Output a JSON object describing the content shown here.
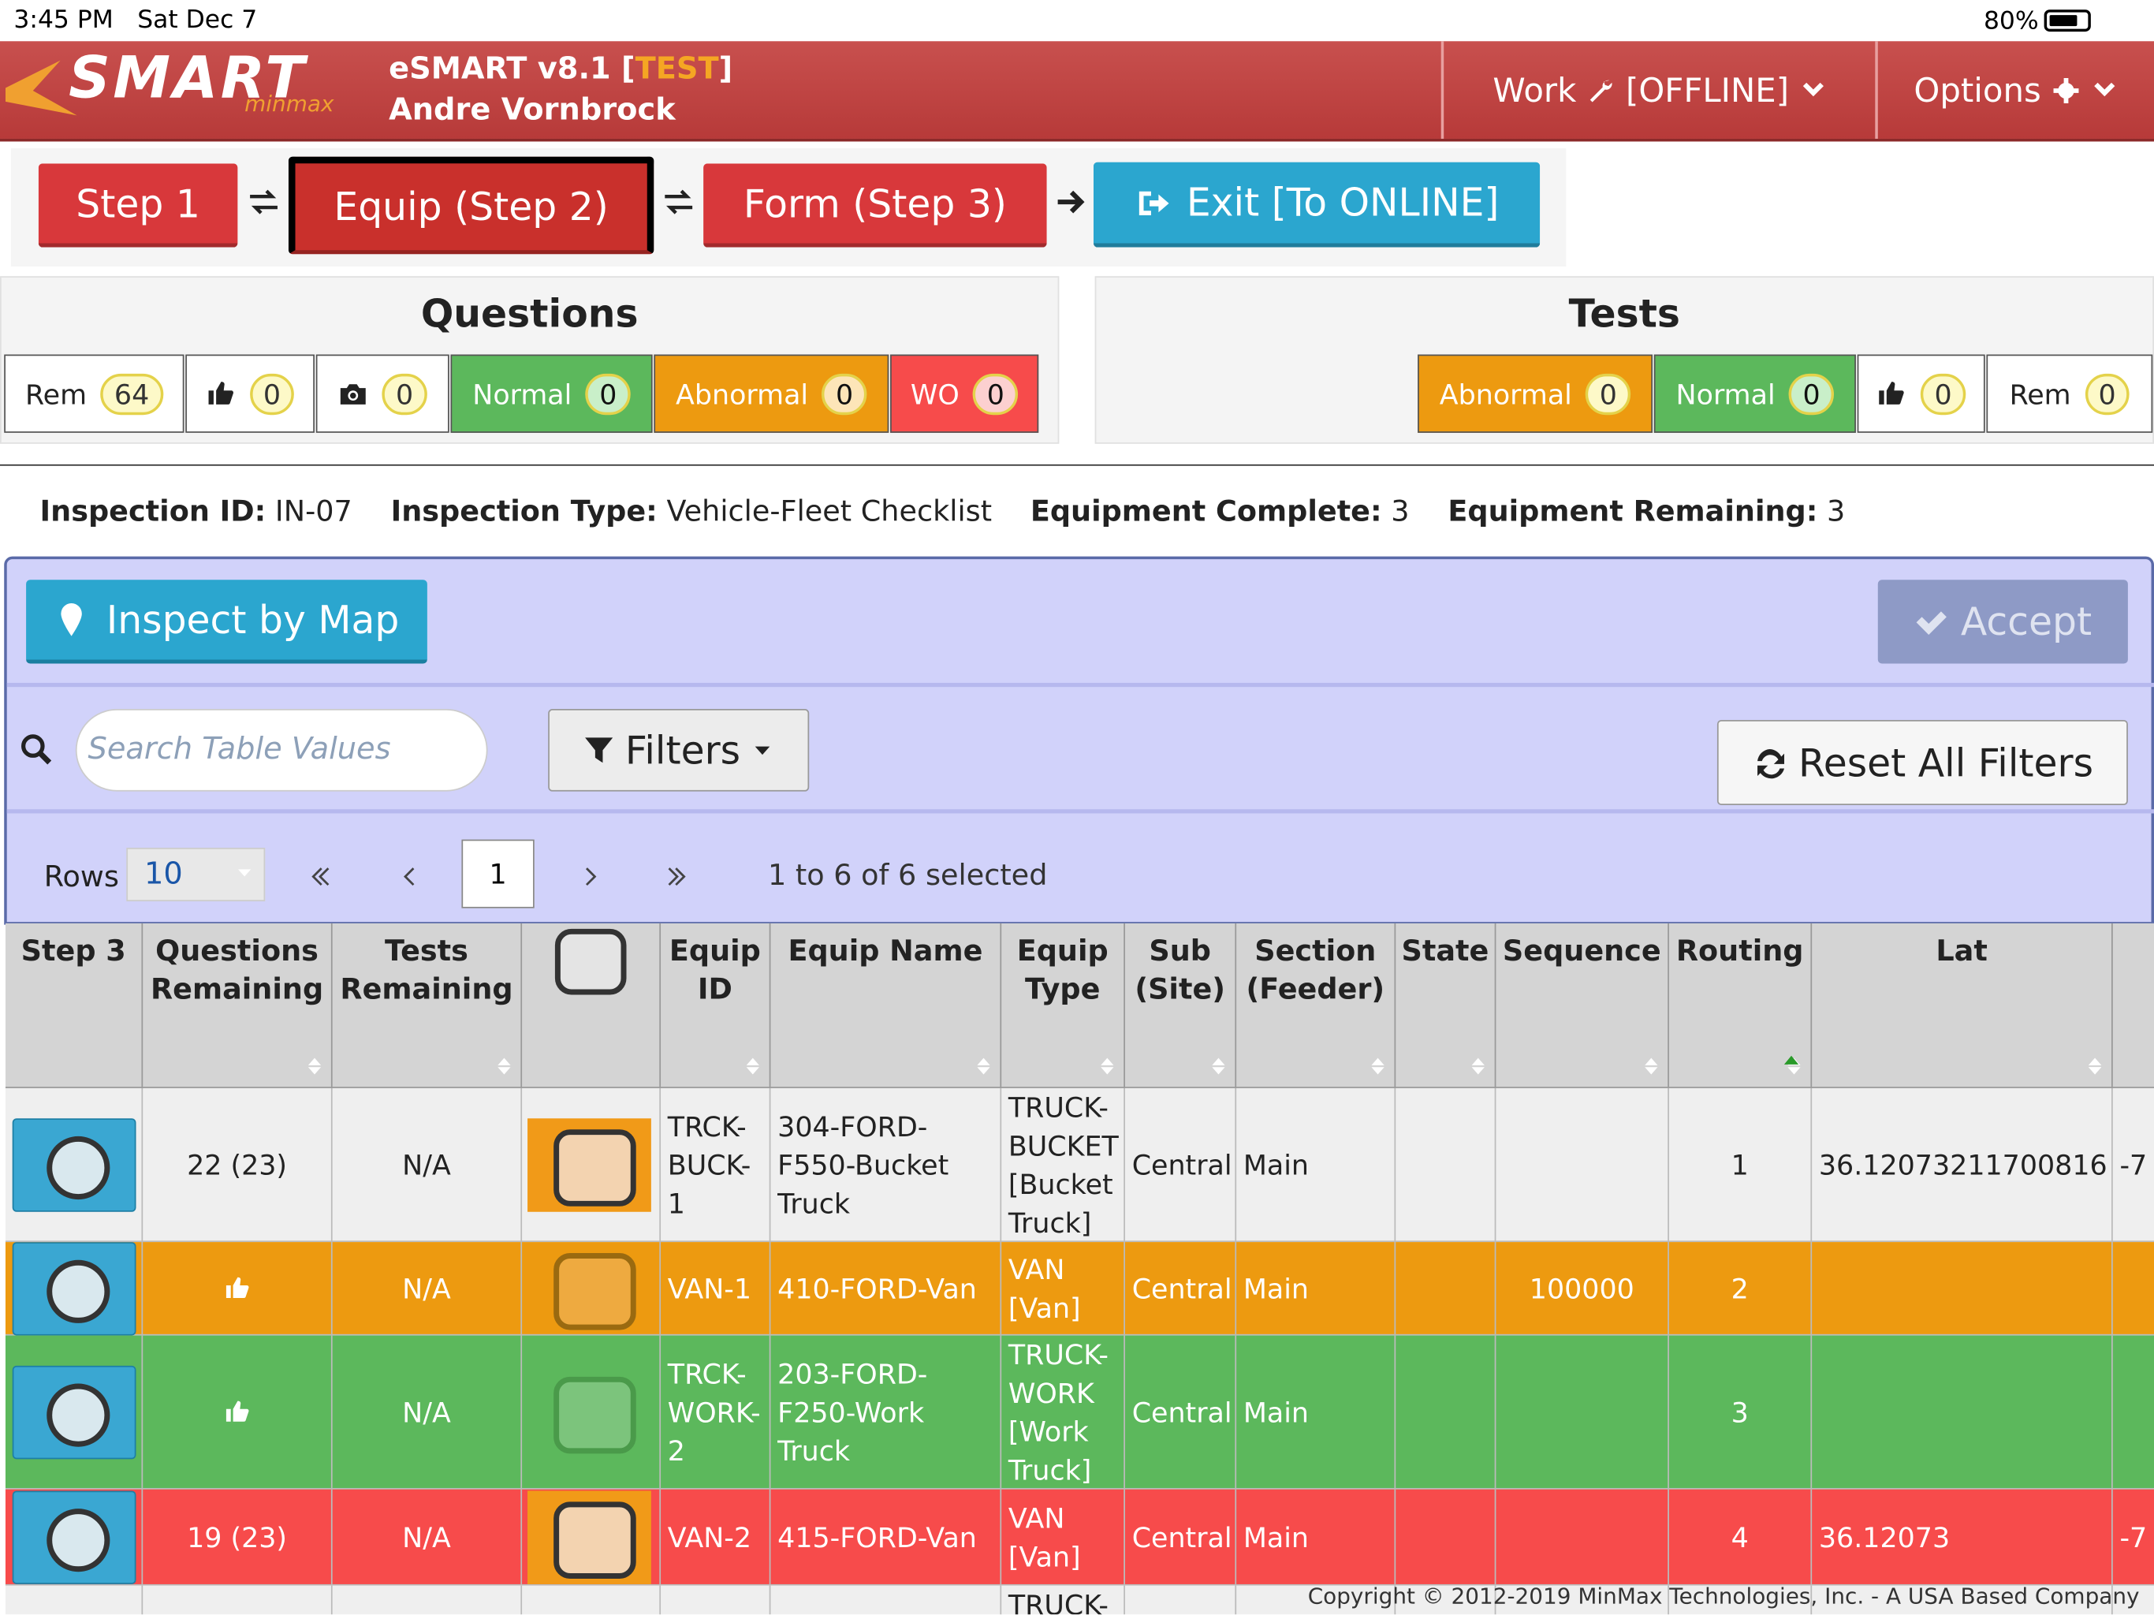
{
  "status_bar": {
    "time": "3:45 PM",
    "date": "Sat Dec 7",
    "battery": "80%"
  },
  "header": {
    "logo": "SMART",
    "logo_sub": "minmax",
    "app": "eSMART v8.1",
    "env_prefix": "[",
    "env": "TEST",
    "env_suffix": "]",
    "user": "Andre Vornbrock",
    "work_menu": "Work",
    "work_status": "[OFFLINE]",
    "options_menu": "Options"
  },
  "steps": [
    "Step 1",
    "Equip (Step 2)",
    "Form (Step 3)",
    "Exit [To ONLINE]"
  ],
  "questions": {
    "title": "Questions",
    "counters": [
      {
        "label": "Rem",
        "count": 64
      },
      {
        "icon": "thumbs-up",
        "count": 0
      },
      {
        "icon": "camera",
        "count": 0
      },
      {
        "label": "Normal",
        "count": 0
      },
      {
        "label": "Abnormal",
        "count": 0
      },
      {
        "label": "WO",
        "count": 0
      }
    ]
  },
  "tests": {
    "title": "Tests",
    "counters": [
      {
        "label": "Abnormal",
        "count": 0
      },
      {
        "label": "Normal",
        "count": 0
      },
      {
        "icon": "thumbs-up",
        "count": 0
      },
      {
        "label": "Rem",
        "count": 0
      }
    ]
  },
  "info": [
    {
      "label": "Inspection ID:",
      "value": "IN-07"
    },
    {
      "label": "Inspection Type:",
      "value": "Vehicle-Fleet Checklist"
    },
    {
      "label": "Equipment Complete:",
      "value": "3"
    },
    {
      "label": "Equipment Remaining:",
      "value": "3"
    }
  ],
  "toolbar": {
    "map_button": "Inspect by Map",
    "accept_button": "Accept",
    "search_placeholder": "Search Table Values",
    "filters_button": "Filters",
    "reset_button": "Reset All Filters",
    "rows_label": "Rows",
    "rows_value": 10,
    "page": 1,
    "summary": "1 to 6 of 6 selected"
  },
  "table": {
    "columns": [
      "Step 3",
      "Questions Remaining",
      "Tests Remaining",
      null,
      "Equip ID",
      "Equip Name",
      "Equip Type",
      "Sub (Site)",
      "Section (Feeder)",
      "State",
      "Sequence",
      "Routing",
      "Lat",
      null
    ],
    "rows": [
      {
        "color": "#efefef",
        "cells": [
          null,
          "22 (23)",
          "N/A",
          null,
          "TRCK-BUCK-1",
          "304-FORD-F550-Bucket Truck",
          "TRUCK-BUCKET [Bucket Truck]",
          "Central",
          "Main",
          null,
          null,
          1,
          36.12073211700816,
          "-7"
        ]
      },
      {
        "color": "#ed9a10",
        "cells": [
          null,
          null,
          "N/A",
          null,
          "VAN-1",
          "410-FORD-Van",
          "VAN [Van]",
          "Central",
          "Main",
          null,
          100000,
          2,
          null,
          null
        ]
      },
      {
        "color": "#5cb85c",
        "cells": [
          null,
          null,
          "N/A",
          null,
          "TRCK-WORK-2",
          "203-FORD-F250-Work Truck",
          "TRUCK-WORK [Work Truck]",
          "Central",
          "Main",
          null,
          null,
          3,
          null,
          null
        ]
      },
      {
        "color": "#f74b4b",
        "cells": [
          null,
          "19 (23)",
          "N/A",
          null,
          "VAN-2",
          "415-FORD-Van",
          "VAN [Van]",
          "Central",
          "Main",
          null,
          null,
          4,
          36.12073,
          "-7"
        ]
      },
      {
        "color": "#efefef",
        "cells": [
          null,
          null,
          null,
          null,
          null,
          null,
          "TRUCK-",
          null,
          null,
          null,
          null,
          null,
          null,
          null
        ]
      }
    ]
  },
  "footer": {
    "copyright": "Copyright © 2012-2019 MinMax Technologies, Inc. - A USA Based Company"
  }
}
